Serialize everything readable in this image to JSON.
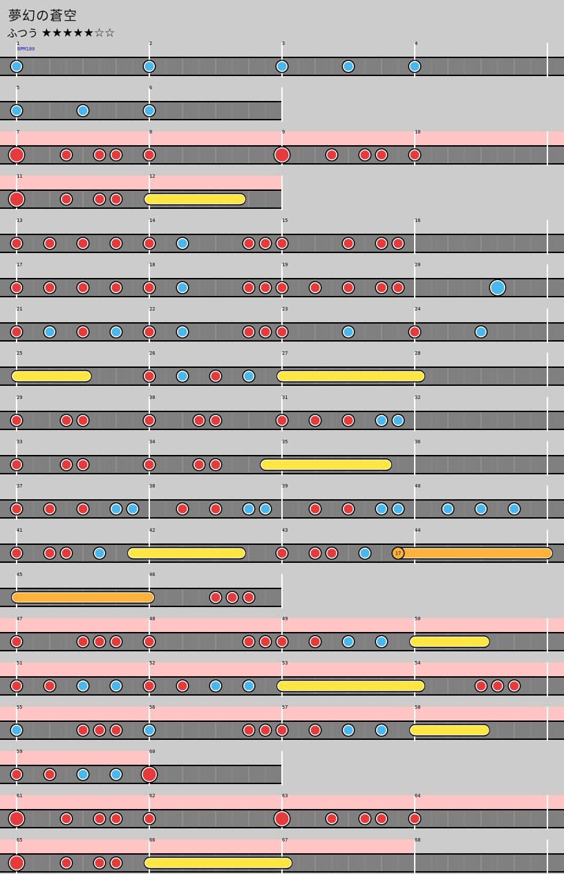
{
  "song": {
    "title": "夢幻の蒼空",
    "course": "ふつう",
    "stars": "★★★★★☆☆"
  },
  "bpm_label": "BPM180",
  "colors": {
    "don": "#e83a3a",
    "ka": "#4ab8ee",
    "drumroll": "#ffe640",
    "balloon": "#ffb23a",
    "gogo": "#ffc4c4",
    "lane": "#808080",
    "background": "#cccccc"
  },
  "rows": [
    {
      "measures": [
        1,
        2,
        3,
        4
      ],
      "gogo": false,
      "notes": [
        [
          0,
          "ka"
        ],
        [
          8,
          "ka"
        ],
        [
          16,
          "ka"
        ],
        [
          20,
          "ka"
        ],
        [
          24,
          "ka"
        ]
      ]
    },
    {
      "measures": [
        5,
        6
      ],
      "gogo": false,
      "notes": [
        [
          0,
          "ka"
        ],
        [
          4,
          "ka"
        ],
        [
          8,
          "ka"
        ]
      ]
    },
    {
      "measures": [
        7,
        8,
        9,
        10
      ],
      "gogo": true,
      "notes": [
        [
          0,
          "DON"
        ],
        [
          3,
          "don"
        ],
        [
          5,
          "don"
        ],
        [
          6,
          "don"
        ],
        [
          8,
          "don"
        ],
        [
          16,
          "DON"
        ],
        [
          19,
          "don"
        ],
        [
          21,
          "don"
        ],
        [
          22,
          "don"
        ],
        [
          24,
          "don"
        ]
      ]
    },
    {
      "measures": [
        11,
        12
      ],
      "gogo": true,
      "notes": [
        [
          0,
          "DON"
        ],
        [
          3,
          "don"
        ],
        [
          5,
          "don"
        ],
        [
          6,
          "don"
        ],
        [
          8,
          "roll",
          13.5
        ]
      ]
    },
    {
      "measures": [
        13,
        14,
        15,
        16
      ],
      "gogo": false,
      "notes": [
        [
          0,
          "don"
        ],
        [
          2,
          "don"
        ],
        [
          4,
          "don"
        ],
        [
          6,
          "don"
        ],
        [
          8,
          "don"
        ],
        [
          10,
          "ka"
        ],
        [
          14,
          "don"
        ],
        [
          15,
          "don"
        ],
        [
          16,
          "don"
        ],
        [
          20,
          "don"
        ],
        [
          22,
          "don"
        ],
        [
          23,
          "don"
        ]
      ]
    },
    {
      "measures": [
        17,
        18,
        19,
        20
      ],
      "gogo": false,
      "notes": [
        [
          0,
          "don"
        ],
        [
          2,
          "don"
        ],
        [
          4,
          "don"
        ],
        [
          6,
          "don"
        ],
        [
          8,
          "don"
        ],
        [
          10,
          "ka"
        ],
        [
          14,
          "don"
        ],
        [
          15,
          "don"
        ],
        [
          16,
          "don"
        ],
        [
          18,
          "don"
        ],
        [
          20,
          "don"
        ],
        [
          22,
          "don"
        ],
        [
          23,
          "don"
        ],
        [
          29,
          "KA"
        ]
      ]
    },
    {
      "measures": [
        21,
        22,
        23,
        24
      ],
      "gogo": false,
      "notes": [
        [
          0,
          "don"
        ],
        [
          2,
          "ka"
        ],
        [
          4,
          "don"
        ],
        [
          6,
          "ka"
        ],
        [
          8,
          "don"
        ],
        [
          10,
          "ka"
        ],
        [
          14,
          "don"
        ],
        [
          15,
          "don"
        ],
        [
          16,
          "don"
        ],
        [
          20,
          "ka"
        ],
        [
          24,
          "don"
        ],
        [
          28,
          "ka"
        ]
      ]
    },
    {
      "measures": [
        25,
        26,
        27,
        28
      ],
      "gogo": false,
      "notes": [
        [
          0,
          "roll",
          4.2
        ],
        [
          8,
          "don"
        ],
        [
          10,
          "ka"
        ],
        [
          12,
          "don"
        ],
        [
          14,
          "ka"
        ],
        [
          16,
          "roll",
          24.3
        ]
      ]
    },
    {
      "measures": [
        29,
        30,
        31,
        32
      ],
      "gogo": false,
      "notes": [
        [
          0,
          "don"
        ],
        [
          3,
          "don"
        ],
        [
          4,
          "don"
        ],
        [
          8,
          "don"
        ],
        [
          11,
          "don"
        ],
        [
          12,
          "don"
        ],
        [
          16,
          "don"
        ],
        [
          18,
          "don"
        ],
        [
          20,
          "don"
        ],
        [
          22,
          "ka"
        ],
        [
          23,
          "ka"
        ]
      ]
    },
    {
      "measures": [
        33,
        34,
        35,
        36
      ],
      "gogo": false,
      "notes": [
        [
          0,
          "don"
        ],
        [
          3,
          "don"
        ],
        [
          4,
          "don"
        ],
        [
          8,
          "don"
        ],
        [
          11,
          "don"
        ],
        [
          12,
          "don"
        ],
        [
          15,
          "roll",
          22.3
        ]
      ]
    },
    {
      "measures": [
        37,
        38,
        39,
        40
      ],
      "gogo": false,
      "notes": [
        [
          0,
          "don"
        ],
        [
          2,
          "don"
        ],
        [
          4,
          "don"
        ],
        [
          6,
          "ka"
        ],
        [
          7,
          "ka"
        ],
        [
          10,
          "don"
        ],
        [
          12,
          "don"
        ],
        [
          14,
          "ka"
        ],
        [
          15,
          "ka"
        ],
        [
          18,
          "don"
        ],
        [
          20,
          "don"
        ],
        [
          22,
          "ka"
        ],
        [
          23,
          "ka"
        ],
        [
          26,
          "ka"
        ],
        [
          28,
          "ka"
        ],
        [
          30,
          "ka"
        ]
      ]
    },
    {
      "measures": [
        41,
        42,
        43,
        44
      ],
      "gogo": false,
      "notes": [
        [
          0,
          "don"
        ],
        [
          2,
          "don"
        ],
        [
          3,
          "don"
        ],
        [
          5,
          "ka"
        ],
        [
          7,
          "roll",
          13.5
        ],
        [
          16,
          "don"
        ],
        [
          18,
          "don"
        ],
        [
          19,
          "don"
        ],
        [
          21,
          "ka"
        ],
        [
          23,
          "balloon",
          32
        ]
      ]
    },
    {
      "measures": [
        45,
        46
      ],
      "gogo": false,
      "notes": [
        [
          0,
          "balloon",
          8
        ]
      ],
      "balloon_start_offscreen": true,
      "notes2": [
        [
          12,
          "don"
        ],
        [
          13,
          "don"
        ],
        [
          14,
          "don"
        ]
      ]
    },
    {
      "measures": [
        47,
        48,
        49,
        50
      ],
      "gogo": true,
      "notes": [
        [
          0,
          "don"
        ],
        [
          4,
          "don"
        ],
        [
          5,
          "don"
        ],
        [
          6,
          "don"
        ],
        [
          8,
          "don"
        ],
        [
          14,
          "don"
        ],
        [
          15,
          "don"
        ],
        [
          16,
          "don"
        ],
        [
          18,
          "don"
        ],
        [
          20,
          "ka"
        ],
        [
          22,
          "ka"
        ],
        [
          24,
          "roll",
          28.2
        ]
      ]
    },
    {
      "measures": [
        51,
        52,
        53,
        54
      ],
      "gogo": true,
      "notes": [
        [
          0,
          "don"
        ],
        [
          2,
          "don"
        ],
        [
          4,
          "ka"
        ],
        [
          6,
          "ka"
        ],
        [
          8,
          "don"
        ],
        [
          10,
          "don"
        ],
        [
          12,
          "ka"
        ],
        [
          14,
          "ka"
        ],
        [
          16,
          "roll",
          24.3
        ],
        [
          28,
          "don"
        ],
        [
          29,
          "don"
        ],
        [
          30,
          "don"
        ]
      ]
    },
    {
      "measures": [
        55,
        56,
        57,
        58
      ],
      "gogo": true,
      "notes": [
        [
          0,
          "ka"
        ],
        [
          4,
          "don"
        ],
        [
          5,
          "don"
        ],
        [
          6,
          "don"
        ],
        [
          8,
          "ka"
        ],
        [
          14,
          "don"
        ],
        [
          15,
          "don"
        ],
        [
          16,
          "don"
        ],
        [
          18,
          "don"
        ],
        [
          20,
          "ka"
        ],
        [
          22,
          "ka"
        ],
        [
          24,
          "roll",
          28.2
        ]
      ]
    },
    {
      "measures": [
        59,
        60
      ],
      "gogo": true,
      "gogoEnd": 8,
      "notes": [
        [
          0,
          "don"
        ],
        [
          2,
          "don"
        ],
        [
          4,
          "ka"
        ],
        [
          6,
          "ka"
        ],
        [
          8,
          "DON"
        ]
      ]
    },
    {
      "measures": [
        61,
        62,
        63,
        64
      ],
      "gogo": true,
      "notes": [
        [
          0,
          "DON"
        ],
        [
          3,
          "don"
        ],
        [
          5,
          "don"
        ],
        [
          6,
          "don"
        ],
        [
          8,
          "don"
        ],
        [
          16,
          "DON"
        ],
        [
          19,
          "don"
        ],
        [
          21,
          "don"
        ],
        [
          22,
          "don"
        ],
        [
          24,
          "don"
        ]
      ]
    },
    {
      "measures": [
        65,
        66,
        67,
        68
      ],
      "gogo": true,
      "gogoEnd": 24,
      "notes": [
        [
          0,
          "DON"
        ],
        [
          3,
          "don"
        ],
        [
          5,
          "don"
        ],
        [
          6,
          "don"
        ],
        [
          8,
          "roll",
          16.3
        ]
      ]
    }
  ],
  "balloon_count": "17"
}
